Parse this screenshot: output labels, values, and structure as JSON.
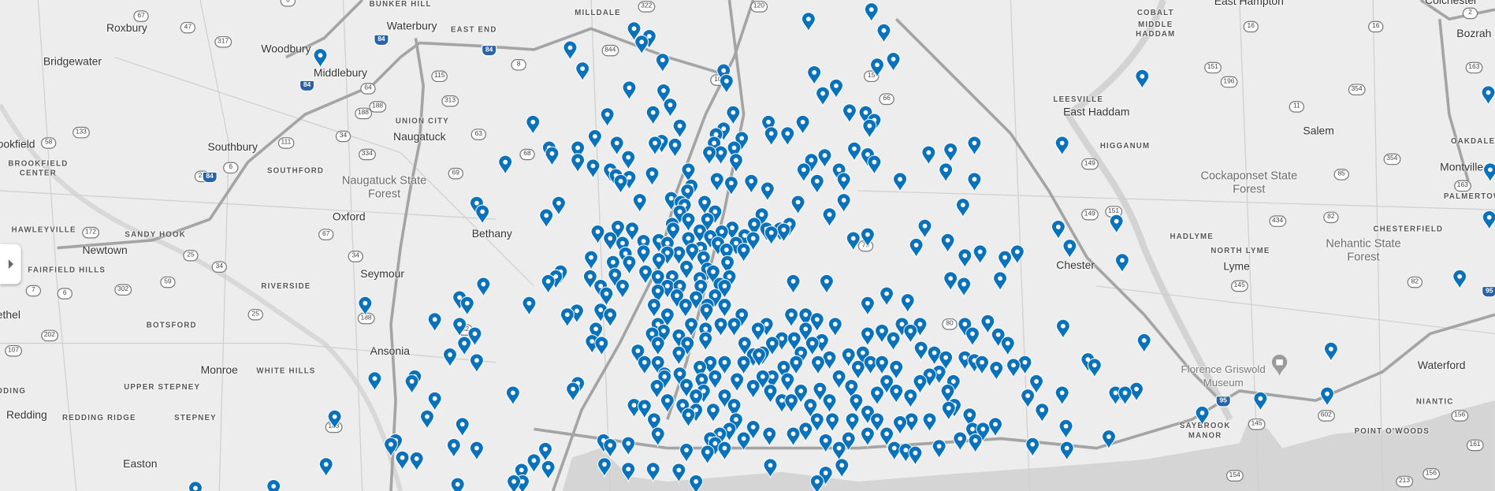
{
  "map": {
    "towns": [
      "Waterbury",
      "Roxbury",
      "Woodbury",
      "Bridgewater",
      "Middlebury",
      "Naugatuck",
      "Southbury",
      "Oxford",
      "Bethany",
      "ookfield",
      "Newtown",
      "Seymour",
      "ethel",
      "Monroe",
      "Ansonia",
      "Redding",
      "Easton",
      "East Hampton",
      "Colchester",
      "Bozrah",
      "East Haddam",
      "Salem",
      "Montville",
      "Chester",
      "Lyme",
      "Waterford"
    ],
    "localities": [
      "BUNKER HILL",
      "EAST END",
      "MILLDALE",
      "UNION CITY",
      "SOUTHFORD",
      "BROOKFIELD CENTER",
      "HAWLEYVILLE",
      "SANDY HOOK",
      "FAIRFIELD HILLS",
      "RIVERSIDE",
      "BOTSFORD",
      "WHITE HILLS",
      "UPPER STEPNEY",
      "DDING",
      "REDDING RIDGE",
      "STEPNEY",
      "COBALT",
      "MIDDLE HADDAM",
      "HIGGANUM",
      "LEESVILLE",
      "OAKDALE",
      "PALMERTOWN",
      "HADLYME",
      "CHESTERFIELD",
      "NORTH LYME",
      "NIANTIC",
      "SAYBROOK MANOR",
      "POINT O'WOODS"
    ],
    "parks": [
      "Naugatuck State Forest",
      "Cockaponset State Forest",
      "Nehantic State Forest"
    ],
    "poi": [
      "Florence Griswold Museum"
    ],
    "routes": [
      "67",
      "47",
      "317",
      "6",
      "322",
      "120",
      "844",
      "10",
      "15",
      "66",
      "64",
      "188",
      "63",
      "8",
      "69",
      "68",
      "133",
      "172",
      "6",
      "67",
      "42",
      "188",
      "25",
      "7",
      "202",
      "6",
      "34",
      "302",
      "115",
      "313",
      "188",
      "334",
      "34",
      "111",
      "25",
      "58",
      "34",
      "59",
      "108",
      "25",
      "107",
      "16",
      "151",
      "196",
      "16",
      "2",
      "2",
      "163",
      "354",
      "11",
      "354",
      "85",
      "82",
      "163",
      "149",
      "149",
      "151",
      "434",
      "82",
      "145",
      "602",
      "145",
      "156",
      "161",
      "161",
      "156",
      "213",
      "154",
      "79",
      "80",
      "9"
    ],
    "interstates": [
      "84",
      "84",
      "84",
      "84",
      "95",
      "95"
    ]
  },
  "markers": {
    "color": "#0a72ba",
    "icon": "map-pin-icon"
  },
  "sidebar_toggle": {
    "icon": "chevron-right-icon"
  }
}
